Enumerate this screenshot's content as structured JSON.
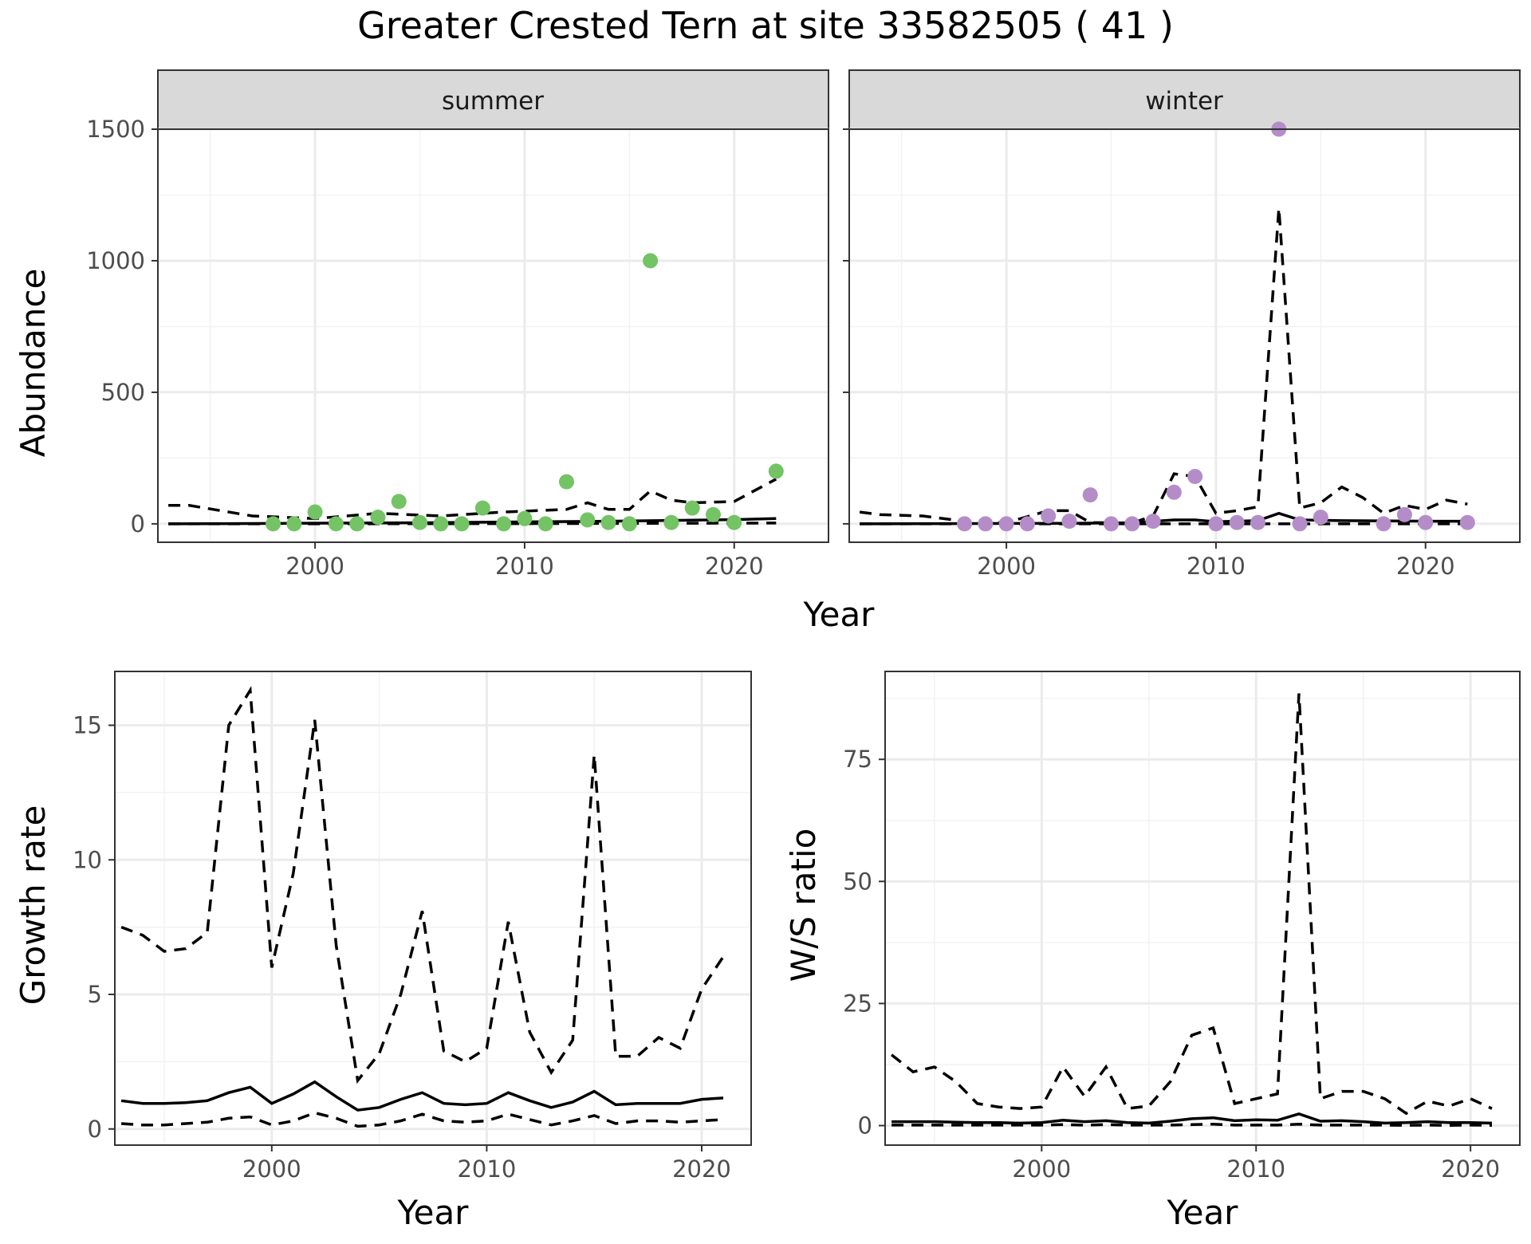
{
  "figure": {
    "title": "Greater Crested Tern at site 33582505 ( 41 )"
  },
  "chart_data": [
    {
      "id": "abundance_summer",
      "type": "scatter",
      "facet": "summer",
      "xlabel": "Year",
      "ylabel": "Abundance",
      "xlim": [
        1992.5,
        2024.5
      ],
      "ylim": [
        -70,
        1500
      ],
      "x_ticks": [
        2000,
        2010,
        2020
      ],
      "y_ticks": [
        0,
        500,
        1000,
        1500
      ],
      "grid": true,
      "point_color": "#74c365",
      "points": {
        "x": [
          1998,
          1999,
          2000,
          2001,
          2002,
          2003,
          2004,
          2005,
          2006,
          2007,
          2008,
          2009,
          2010,
          2011,
          2012,
          2013,
          2014,
          2015,
          2016,
          2017,
          2018,
          2019,
          2020,
          2022
        ],
        "y": [
          0,
          0,
          45,
          0,
          0,
          25,
          85,
          5,
          0,
          0,
          60,
          0,
          20,
          0,
          160,
          15,
          5,
          0,
          1000,
          5,
          60,
          35,
          5,
          200
        ]
      },
      "series": [
        {
          "style": "solid",
          "x": [
            1993,
            1996,
            1999,
            2002,
            2005,
            2008,
            2011,
            2014,
            2017,
            2020,
            2022
          ],
          "y": [
            0,
            1,
            2,
            3,
            4,
            6,
            8,
            10,
            13,
            16,
            20
          ]
        },
        {
          "style": "dashed",
          "x": [
            1993,
            1994,
            1997,
            2000,
            2003,
            2006,
            2009,
            2012,
            2013,
            2014,
            2015,
            2016,
            2017,
            2018,
            2020,
            2022
          ],
          "y": [
            70,
            70,
            30,
            20,
            40,
            30,
            45,
            55,
            80,
            55,
            55,
            125,
            90,
            80,
            85,
            170
          ]
        },
        {
          "style": "dashed",
          "x": [
            1993,
            2000,
            2010,
            2022
          ],
          "y": [
            0,
            0,
            1,
            3
          ]
        }
      ]
    },
    {
      "id": "abundance_winter",
      "type": "scatter",
      "facet": "winter",
      "xlabel": "Year",
      "ylabel": "Abundance",
      "xlim": [
        1992.5,
        2024.5
      ],
      "ylim": [
        -70,
        1500
      ],
      "x_ticks": [
        2000,
        2010,
        2020
      ],
      "y_ticks": [
        0,
        500,
        1000,
        1500
      ],
      "grid": true,
      "point_color": "#b48dc8",
      "points": {
        "x": [
          1998,
          1999,
          2000,
          2001,
          2002,
          2003,
          2004,
          2005,
          2006,
          2007,
          2008,
          2009,
          2010,
          2011,
          2012,
          2013,
          2014,
          2015,
          2018,
          2019,
          2020,
          2022
        ],
        "y": [
          0,
          0,
          0,
          0,
          30,
          10,
          110,
          0,
          0,
          10,
          120,
          180,
          0,
          5,
          5,
          1500,
          0,
          25,
          0,
          35,
          5,
          5
        ]
      },
      "series": [
        {
          "style": "solid",
          "x": [
            1993,
            2003,
            2006,
            2008,
            2009,
            2010,
            2012,
            2013,
            2014,
            2016,
            2020,
            2022
          ],
          "y": [
            0,
            2,
            4,
            15,
            15,
            8,
            12,
            40,
            15,
            12,
            10,
            10
          ]
        },
        {
          "style": "dashed",
          "x": [
            1993,
            1994,
            1996,
            1998,
            2000,
            2002,
            2003,
            2004,
            2006,
            2007,
            2008,
            2009,
            2010,
            2011,
            2012,
            2013,
            2014,
            2015,
            2016,
            2017,
            2018,
            2019,
            2020,
            2021,
            2022
          ],
          "y": [
            45,
            35,
            30,
            10,
            5,
            50,
            50,
            5,
            3,
            30,
            190,
            180,
            40,
            50,
            65,
            1200,
            60,
            80,
            140,
            100,
            40,
            70,
            55,
            90,
            75
          ]
        },
        {
          "style": "dashed",
          "x": [
            1993,
            2010,
            2022
          ],
          "y": [
            0,
            0,
            0
          ]
        }
      ]
    },
    {
      "id": "growth_rate",
      "type": "line",
      "xlabel": "Year",
      "ylabel": "Growth rate",
      "xlim": [
        1992.7,
        2022.3
      ],
      "ylim": [
        -0.6,
        17
      ],
      "x_ticks": [
        2000,
        2010,
        2020
      ],
      "y_ticks": [
        0,
        5,
        10,
        15
      ],
      "grid": true,
      "x": [
        1993,
        1994,
        1995,
        1996,
        1997,
        1998,
        1999,
        2000,
        2001,
        2002,
        2003,
        2004,
        2005,
        2006,
        2007,
        2008,
        2009,
        2010,
        2011,
        2012,
        2013,
        2014,
        2015,
        2016,
        2017,
        2018,
        2019,
        2020,
        2021
      ],
      "series": [
        {
          "style": "solid",
          "values": [
            1.05,
            0.95,
            0.95,
            0.98,
            1.05,
            1.35,
            1.55,
            0.95,
            1.3,
            1.75,
            1.2,
            0.7,
            0.8,
            1.1,
            1.35,
            0.95,
            0.9,
            0.95,
            1.35,
            1.05,
            0.8,
            1.0,
            1.4,
            0.9,
            0.95,
            0.95,
            0.95,
            1.1,
            1.15
          ]
        },
        {
          "style": "dashed",
          "values": [
            7.5,
            7.2,
            6.6,
            6.7,
            7.3,
            15.0,
            16.3,
            6.0,
            9.5,
            15.2,
            6.8,
            1.8,
            2.8,
            5.0,
            8.1,
            2.9,
            2.5,
            3.0,
            7.7,
            3.6,
            2.1,
            3.3,
            13.9,
            2.7,
            2.7,
            3.4,
            3.0,
            5.2,
            6.4
          ]
        },
        {
          "style": "dashed",
          "values": [
            0.2,
            0.15,
            0.15,
            0.2,
            0.25,
            0.4,
            0.45,
            0.15,
            0.3,
            0.6,
            0.4,
            0.1,
            0.15,
            0.3,
            0.55,
            0.3,
            0.25,
            0.3,
            0.55,
            0.35,
            0.15,
            0.3,
            0.5,
            0.2,
            0.3,
            0.3,
            0.25,
            0.3,
            0.35
          ]
        }
      ]
    },
    {
      "id": "ws_ratio",
      "type": "line",
      "xlabel": "Year",
      "ylabel": "W/S ratio",
      "xlim": [
        1992.7,
        2022.3
      ],
      "ylim": [
        -4,
        93
      ],
      "x_ticks": [
        2000,
        2010,
        2020
      ],
      "y_ticks": [
        0,
        25,
        50,
        75
      ],
      "grid": true,
      "x": [
        1993,
        1994,
        1995,
        1996,
        1997,
        1998,
        1999,
        2000,
        2001,
        2002,
        2003,
        2004,
        2005,
        2006,
        2007,
        2008,
        2009,
        2010,
        2011,
        2012,
        2013,
        2014,
        2015,
        2016,
        2017,
        2018,
        2019,
        2020,
        2021
      ],
      "series": [
        {
          "style": "solid",
          "values": [
            0.8,
            0.8,
            0.8,
            0.7,
            0.6,
            0.6,
            0.5,
            0.6,
            1.1,
            0.8,
            1.0,
            0.6,
            0.5,
            0.9,
            1.4,
            1.6,
            1.0,
            1.2,
            1.1,
            2.4,
            0.9,
            1.0,
            0.8,
            0.5,
            0.6,
            0.8,
            0.6,
            0.6,
            0.5
          ]
        },
        {
          "style": "dashed",
          "values": [
            14.5,
            11.0,
            12.0,
            9.0,
            4.5,
            3.8,
            3.5,
            3.8,
            12.0,
            6.0,
            12.0,
            3.5,
            4.0,
            9.0,
            18.5,
            20.0,
            4.5,
            5.5,
            6.5,
            88.5,
            5.5,
            7.0,
            7.0,
            5.5,
            2.5,
            5.0,
            4.0,
            5.5,
            3.5
          ]
        },
        {
          "style": "dashed",
          "values": [
            0.1,
            0.1,
            0.1,
            0.1,
            0.1,
            0.1,
            0.1,
            0.1,
            0.2,
            0.1,
            0.2,
            0.1,
            0.1,
            0.1,
            0.2,
            0.3,
            0.1,
            0.1,
            0.1,
            0.3,
            0.1,
            0.1,
            0.1,
            0.1,
            0.05,
            0.1,
            0.05,
            0.1,
            0.05
          ]
        }
      ]
    }
  ]
}
